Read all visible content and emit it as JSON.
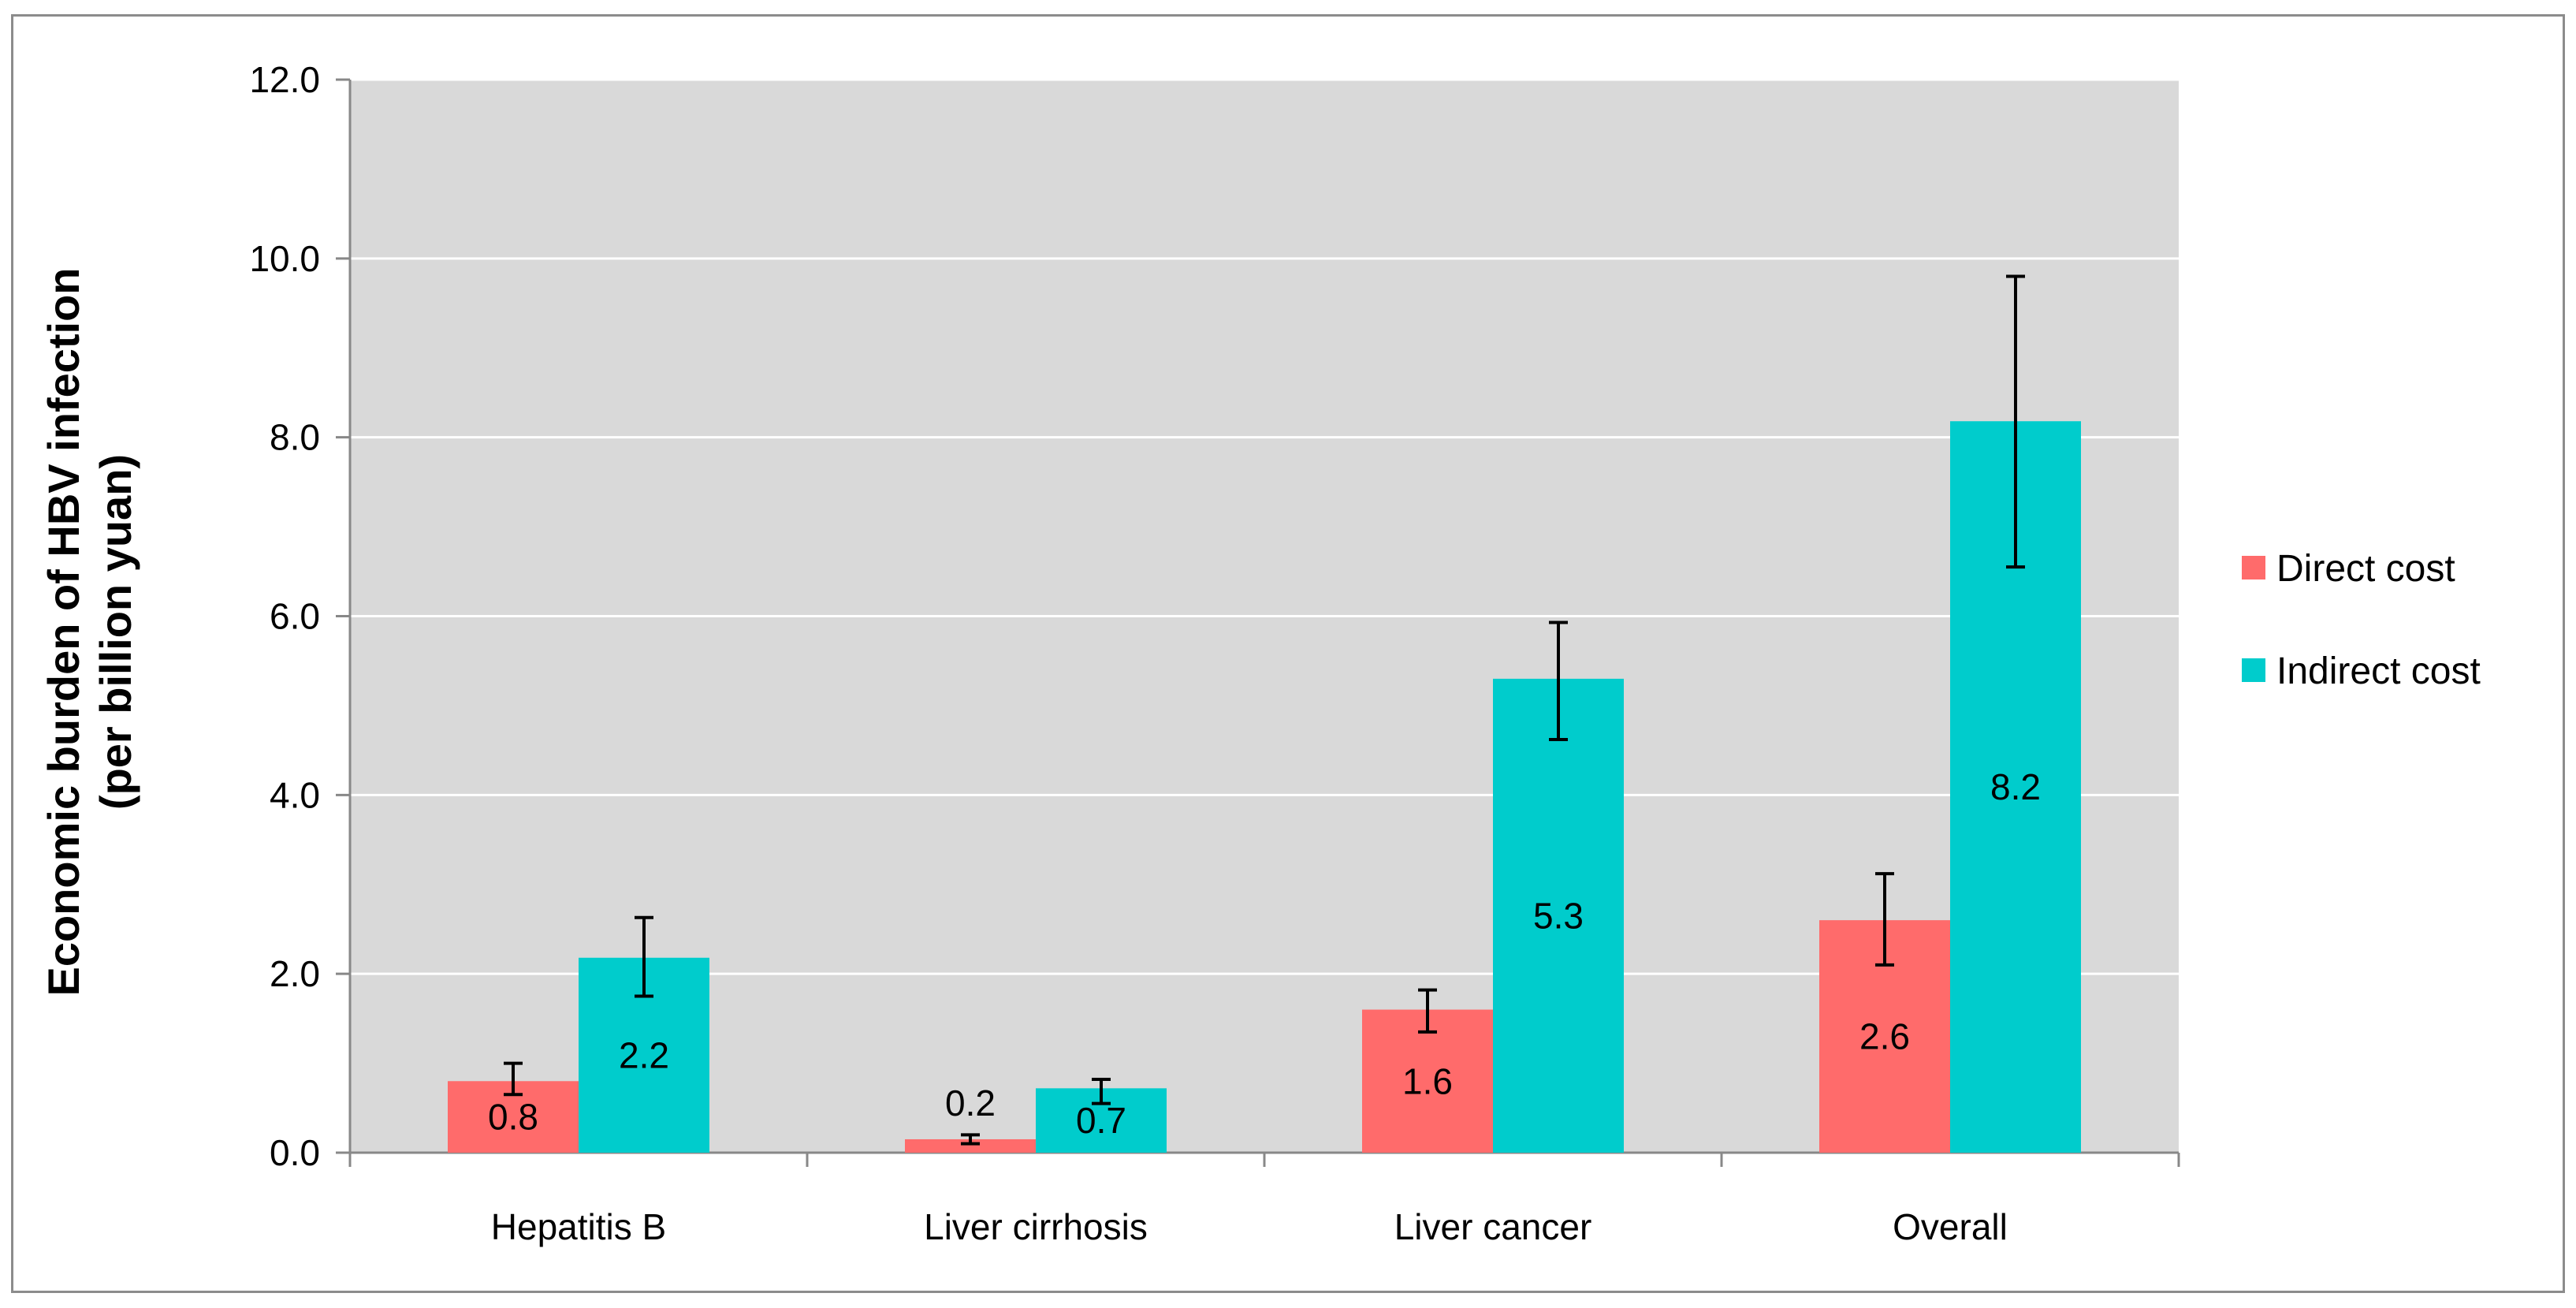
{
  "chart_data": {
    "type": "bar",
    "title": "",
    "xlabel": "",
    "ylabel": "Economic burden of HBV infection",
    "ylabel_line2": "(per billion yuan)",
    "ylim": [
      0,
      12
    ],
    "y_ticks": [
      0,
      2,
      4,
      6,
      8,
      10,
      12
    ],
    "y_tick_labels": [
      "0.0",
      "2.0",
      "4.0",
      "6.0",
      "8.0",
      "10.0",
      "12.0"
    ],
    "grid": true,
    "legend_position": "right",
    "categories": [
      "Hepatitis B",
      "Liver cirrhosis",
      "Liver cancer",
      "Overall"
    ],
    "series": [
      {
        "name": "Direct cost",
        "color": "#ff6b6b",
        "values": [
          0.8,
          0.15,
          1.6,
          2.6
        ],
        "data_labels": [
          "0.8",
          "0.2",
          "1.6",
          "2.6"
        ],
        "error_low": [
          0.65,
          0.1,
          1.35,
          2.1
        ],
        "error_high": [
          1.0,
          0.2,
          1.82,
          3.12
        ]
      },
      {
        "name": "Indirect cost",
        "color": "#00cccc",
        "values": [
          2.18,
          0.72,
          5.3,
          8.18
        ],
        "data_labels": [
          "2.2",
          "0.7",
          "5.3",
          "8.2"
        ],
        "error_low": [
          1.75,
          0.55,
          4.62,
          6.55
        ],
        "error_high": [
          2.63,
          0.82,
          5.93,
          9.8
        ]
      }
    ],
    "plot_background": "#d9d9d9",
    "grid_color": "#ffffff"
  }
}
